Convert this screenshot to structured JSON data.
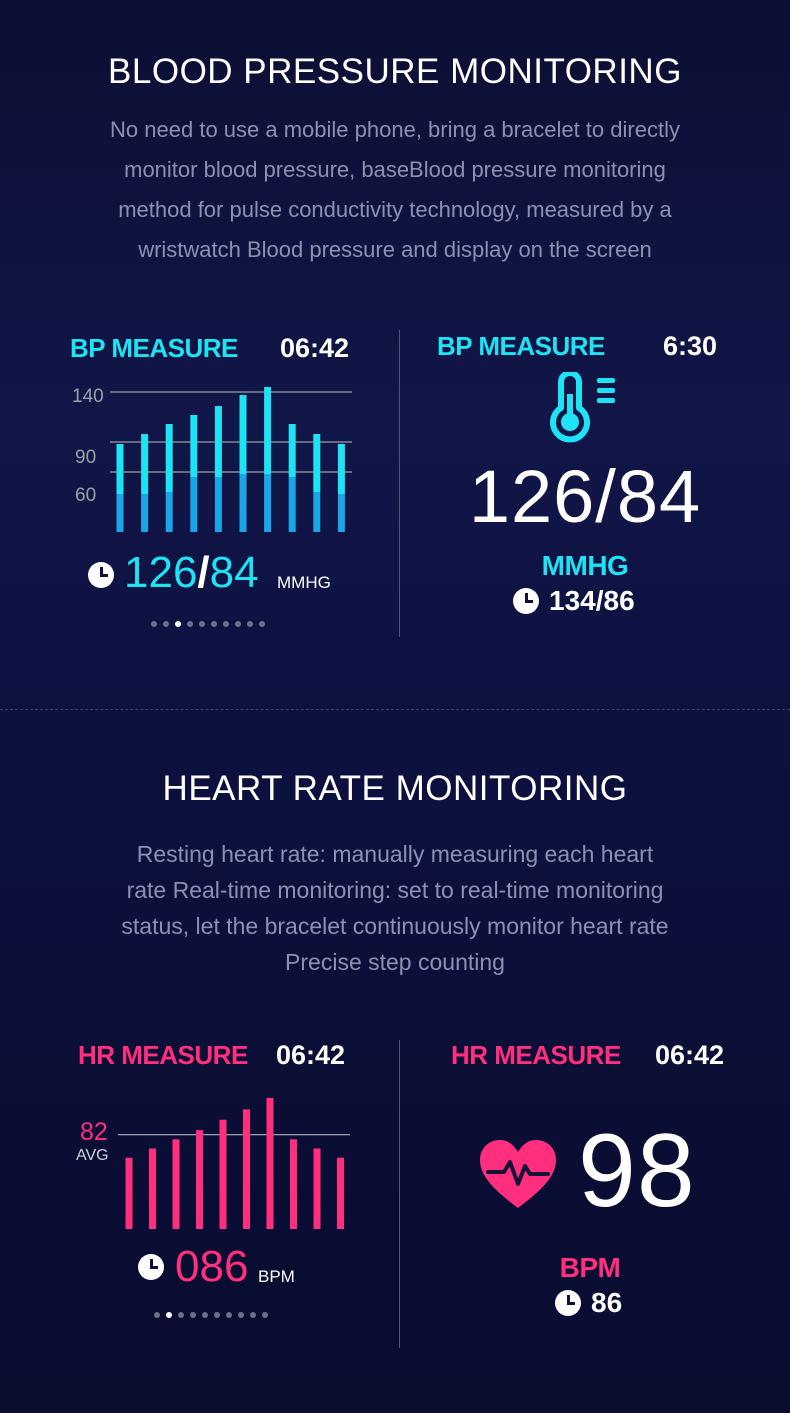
{
  "bp_section": {
    "title": "BLOOD PRESSURE MONITORING",
    "description_lines": [
      "No need to use a mobile phone, bring a bracelet to directly",
      "monitor blood pressure, baseBlood pressure monitoring",
      "method for pulse conductivity technology, measured by a",
      "wristwatch Blood pressure and display on the screen"
    ],
    "left_panel": {
      "label": "BP MEASURE",
      "time": "06:42",
      "y_ticks": [
        "140",
        "90",
        "60"
      ],
      "reading_sys": "126",
      "reading_sep": "/",
      "reading_dia": "84",
      "unit": "MMHG",
      "page_dots": 10,
      "active_dot": 2
    },
    "right_panel": {
      "label": "BP MEASURE",
      "time": "6:30",
      "icon": "thermometer-icon",
      "reading": "126/84",
      "unit": "MMHG",
      "previous": "134/86"
    }
  },
  "hr_section": {
    "title": "HEART RATE MONITORING",
    "description_lines": [
      "Resting heart rate: manually measuring each heart",
      "rate Real-time monitoring: set to real-time monitoring",
      "status, let the bracelet continuously monitor heart rate",
      "Precise step counting"
    ],
    "left_panel": {
      "label": "HR MEASURE",
      "time": "06:42",
      "avg_value": "82",
      "avg_label": "AVG",
      "reading": "086",
      "unit": "BPM",
      "page_dots": 10,
      "active_dot": 1
    },
    "right_panel": {
      "label": "HR MEASURE",
      "time": "06:42",
      "icon": "heart-pulse-icon",
      "reading": "98",
      "unit": "BPM",
      "previous": "86"
    }
  },
  "colors": {
    "cyan": "#1ee3f4",
    "blue": "#1aa6e6",
    "pink": "#ff2f7d"
  },
  "chart_data": [
    {
      "type": "bar",
      "ylim": [
        0,
        160
      ],
      "y_ticks": [
        140,
        90,
        60
      ],
      "categories": [
        "",
        "",
        "",
        "",
        "",
        "",
        "",
        "",
        "",
        ""
      ],
      "values": [
        88,
        98,
        108,
        117,
        126,
        137,
        145,
        108,
        98,
        88
      ],
      "lower_values": [
        38,
        38,
        40,
        55,
        55,
        58,
        58,
        55,
        40,
        38
      ]
    },
    {
      "type": "bar",
      "avg": 82,
      "ylim": [
        0,
        120
      ],
      "categories": [
        "",
        "",
        "",
        "",
        "",
        "",
        "",
        "",
        "",
        ""
      ],
      "values": [
        62,
        70,
        78,
        86,
        95,
        104,
        114,
        78,
        70,
        62
      ]
    }
  ]
}
